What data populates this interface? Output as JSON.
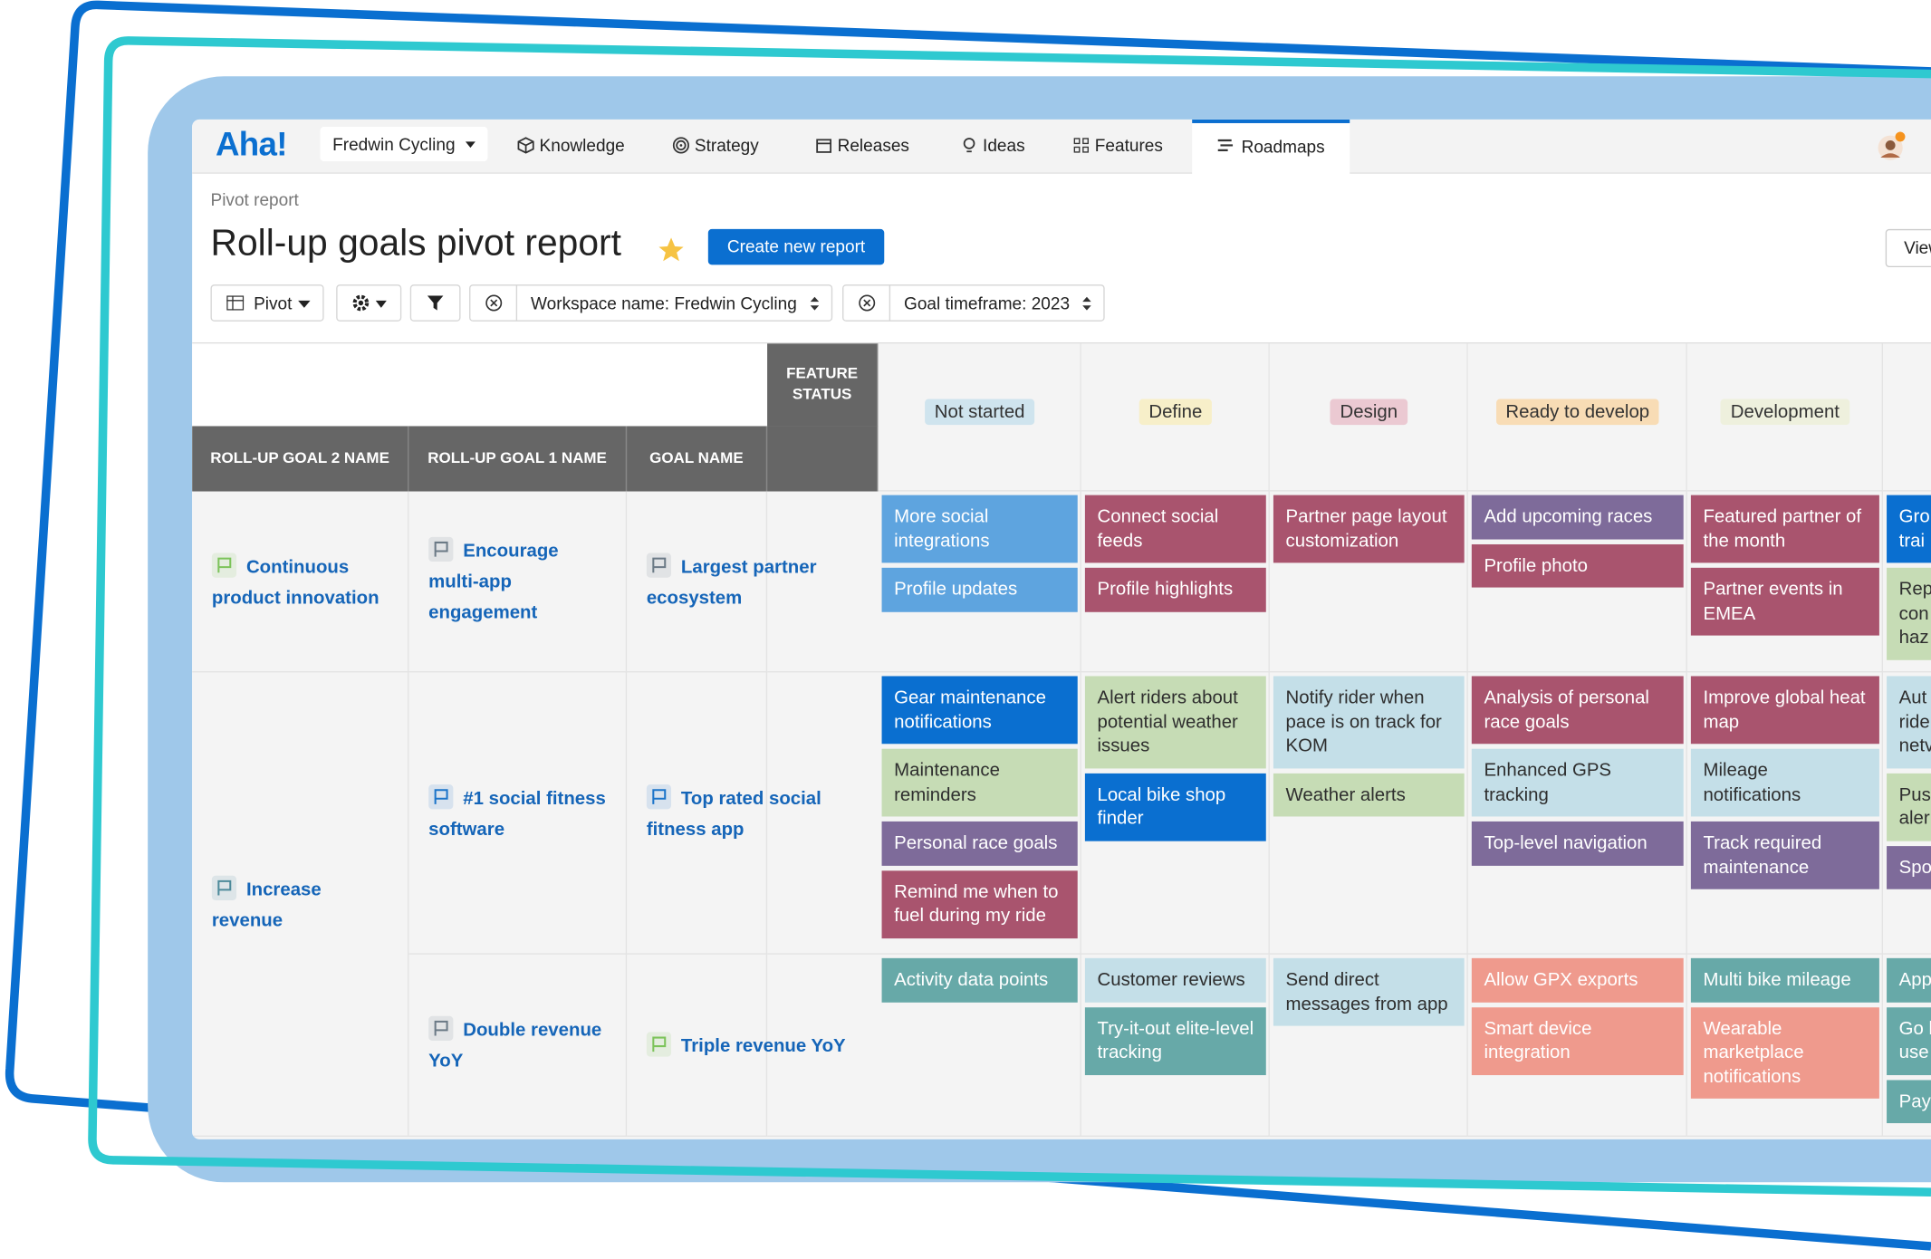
{
  "app": {
    "logo": "Aha!",
    "workspace": "Fredwin Cycling",
    "nav": [
      "Knowledge",
      "Strategy",
      "Releases",
      "Ideas",
      "Features",
      "Roadmaps"
    ],
    "breadcrumb": "Pivot report",
    "title": "Roll-up goals pivot report",
    "create_button": "Create new report",
    "view_button": "View",
    "toolbar": {
      "pivot": "Pivot",
      "filters": [
        "Workspace name: Fredwin Cycling",
        "Goal timeframe: 2023"
      ]
    },
    "table": {
      "corner_header": "FEATURE STATUS",
      "headers": [
        "ROLL-UP GOAL 2 NAME",
        "ROLL-UP GOAL 1 NAME",
        "GOAL NAME"
      ],
      "statuses": [
        {
          "label": "Not started",
          "color": "#cfe4ee"
        },
        {
          "label": "Define",
          "color": "#f7efc9"
        },
        {
          "label": "Design",
          "color": "#ebc9d2"
        },
        {
          "label": "Ready to develop",
          "color": "#f8dcb5"
        },
        {
          "label": "Development",
          "color": "#eef0dd"
        }
      ],
      "groups": [
        {
          "name": "Continuous product innovation",
          "flag_color": "#7cc35a",
          "rows": [
            {
              "goal1": {
                "name": "Encourage multi-app engagement",
                "flag_color": "#6b7a86"
              },
              "goal": {
                "name": "Largest partner ecosystem",
                "flag_color": "#6b7a86"
              },
              "cells": [
                [
                  {
                    "text": "More social integrations",
                    "color": "#5ea4df"
                  },
                  {
                    "text": "Profile updates",
                    "color": "#5ea4df"
                  }
                ],
                [
                  {
                    "text": "Connect social feeds",
                    "color": "#a9546e"
                  },
                  {
                    "text": "Profile highlights",
                    "color": "#a9546e"
                  }
                ],
                [
                  {
                    "text": "Partner page layout customization",
                    "color": "#a9546e"
                  }
                ],
                [
                  {
                    "text": "Add upcoming races",
                    "color": "#7e6b9a"
                  },
                  {
                    "text": "Profile photo",
                    "color": "#a9546e"
                  }
                ],
                [
                  {
                    "text": "Featured partner of the month",
                    "color": "#a9546e"
                  },
                  {
                    "text": "Partner events in EMEA",
                    "color": "#a9546e"
                  }
                ],
                [
                  {
                    "text": "Gro\ntrai",
                    "color": "#0a6fd0"
                  },
                  {
                    "text": "Rep\ncon\nhaz",
                    "color": "#c6dcb5"
                  }
                ]
              ]
            }
          ]
        },
        {
          "name": "Increase revenue",
          "flag_color": "#4d8a9a",
          "rows": [
            {
              "goal1": {
                "name": "#1 social fitness software",
                "flag_color": "#1b74c9"
              },
              "goal": {
                "name": "Top rated social fitness app",
                "flag_color": "#1b74c9"
              },
              "cells": [
                [
                  {
                    "text": "Gear maintenance notifications",
                    "color": "#0a6fd0"
                  },
                  {
                    "text": "Maintenance reminders",
                    "color": "#c6dcb5"
                  },
                  {
                    "text": "Personal race goals",
                    "color": "#7e6b9a"
                  },
                  {
                    "text": "Remind me when to fuel during my ride",
                    "color": "#a9546e"
                  }
                ],
                [
                  {
                    "text": "Alert riders about potential weather issues",
                    "color": "#c6dcb5"
                  },
                  {
                    "text": "Local bike shop finder",
                    "color": "#0a6fd0"
                  }
                ],
                [
                  {
                    "text": "Notify rider when pace is on track for KOM",
                    "color": "#c4dfe8"
                  },
                  {
                    "text": "Weather alerts",
                    "color": "#c6dcb5"
                  }
                ],
                [
                  {
                    "text": "Analysis of personal race goals",
                    "color": "#a9546e"
                  },
                  {
                    "text": "Enhanced GPS tracking",
                    "color": "#c4dfe8"
                  },
                  {
                    "text": "Top-level navigation",
                    "color": "#7e6b9a"
                  }
                ],
                [
                  {
                    "text": "Improve global heat map",
                    "color": "#a9546e"
                  },
                  {
                    "text": "Mileage notifications",
                    "color": "#c4dfe8"
                  },
                  {
                    "text": "Track required maintenance",
                    "color": "#7e6b9a"
                  }
                ],
                [
                  {
                    "text": "Aut\nride\nnetv",
                    "color": "#c4dfe8"
                  },
                  {
                    "text": "Pus\naler",
                    "color": "#c6dcb5"
                  },
                  {
                    "text": "Spo",
                    "color": "#7e6b9a"
                  }
                ]
              ]
            },
            {
              "goal1": {
                "name": "Double revenue YoY",
                "flag_color": "#6b7a86"
              },
              "goal": {
                "name": "Triple revenue YoY",
                "flag_color": "#7cc35a"
              },
              "cells": [
                [
                  {
                    "text": "Activity data points",
                    "color": "#67a9a8"
                  }
                ],
                [
                  {
                    "text": "Customer reviews",
                    "color": "#c4dfe8"
                  },
                  {
                    "text": "Try-it-out elite-level tracking",
                    "color": "#67a9a8"
                  }
                ],
                [
                  {
                    "text": "Send direct messages from app",
                    "color": "#c4dfe8"
                  }
                ],
                [
                  {
                    "text": "Allow GPX exports",
                    "color": "#ef9a8d"
                  },
                  {
                    "text": "Smart device integration",
                    "color": "#ef9a8d"
                  }
                ],
                [
                  {
                    "text": "Multi bike mileage",
                    "color": "#67a9a8"
                  },
                  {
                    "text": "Wearable marketplace notifications",
                    "color": "#ef9a8d"
                  }
                ],
                [
                  {
                    "text": "App",
                    "color": "#67a9a8"
                  },
                  {
                    "text": "Go l\nuse",
                    "color": "#67a9a8"
                  },
                  {
                    "text": "Pay",
                    "color": "#67a9a8"
                  }
                ]
              ]
            }
          ]
        }
      ]
    }
  }
}
